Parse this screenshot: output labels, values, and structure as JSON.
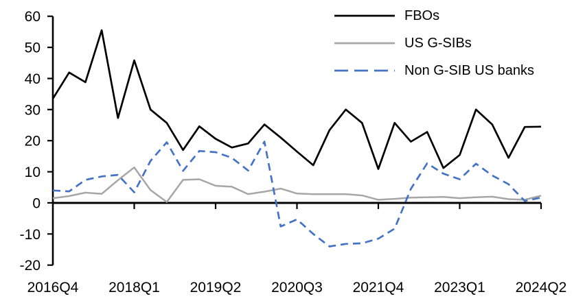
{
  "chart_data": {
    "type": "line",
    "title": "",
    "xlabel": "",
    "ylabel": "",
    "grid": "off",
    "legend_position": "top-right",
    "axis_color": "#000000",
    "ylim": [
      -20,
      60
    ],
    "y_ticks": [
      60,
      50,
      40,
      30,
      20,
      10,
      0,
      -10,
      -20
    ],
    "x_axis_labels": [
      "2016Q4",
      "2018Q1",
      "2019Q2",
      "2020Q3",
      "2021Q4",
      "2023Q1",
      "2024Q2"
    ],
    "x_label_indices": [
      0,
      5,
      10,
      15,
      20,
      25,
      30
    ],
    "categories": [
      "2016Q4",
      "2017Q1",
      "2017Q2",
      "2017Q3",
      "2017Q4",
      "2018Q1",
      "2018Q2",
      "2018Q3",
      "2018Q4",
      "2019Q1",
      "2019Q2",
      "2019Q3",
      "2019Q4",
      "2020Q1",
      "2020Q2",
      "2020Q3",
      "2020Q4",
      "2021Q1",
      "2021Q2",
      "2021Q3",
      "2021Q4",
      "2022Q1",
      "2022Q2",
      "2022Q3",
      "2022Q4",
      "2023Q1",
      "2023Q2",
      "2023Q3",
      "2023Q4",
      "2024Q1",
      "2024Q2"
    ],
    "series": [
      {
        "name": "FBOs",
        "color": "#000000",
        "dash": "solid",
        "width": 2.7,
        "values": [
          33.5,
          41.9,
          38.8,
          55.5,
          27.3,
          45.8,
          30.0,
          25.7,
          17.0,
          24.6,
          20.6,
          17.8,
          19.1,
          25.2,
          21.0,
          16.5,
          12.1,
          23.4,
          30.0,
          25.7,
          10.9,
          25.7,
          19.7,
          22.8,
          11.2,
          15.4,
          30.0,
          25.2,
          14.5,
          24.4,
          24.5
        ]
      },
      {
        "name": "US G-SIBs",
        "color": "#a6a6a6",
        "dash": "solid",
        "width": 2.5,
        "values": [
          1.5,
          2.2,
          3.3,
          2.9,
          7.3,
          11.4,
          4.1,
          0.3,
          7.4,
          7.6,
          5.5,
          5.2,
          2.8,
          3.6,
          4.6,
          3.0,
          2.8,
          2.8,
          2.8,
          2.4,
          1.0,
          1.3,
          1.7,
          1.8,
          1.9,
          1.5,
          1.8,
          2.0,
          1.2,
          1.0,
          2.3
        ]
      },
      {
        "name": "Non G-SIB US banks",
        "color": "#4472c4",
        "dash": "dashed",
        "width": 2.7,
        "values": [
          4.0,
          3.7,
          7.4,
          8.5,
          9.0,
          3.4,
          13.5,
          19.5,
          10.3,
          16.7,
          16.3,
          14.5,
          10.4,
          19.7,
          -7.6,
          -5.3,
          -10.0,
          -14.0,
          -13.2,
          -13.0,
          -11.5,
          -8.3,
          4.5,
          12.7,
          9.4,
          7.6,
          12.6,
          8.8,
          6.0,
          0.6,
          1.7
        ]
      }
    ]
  }
}
